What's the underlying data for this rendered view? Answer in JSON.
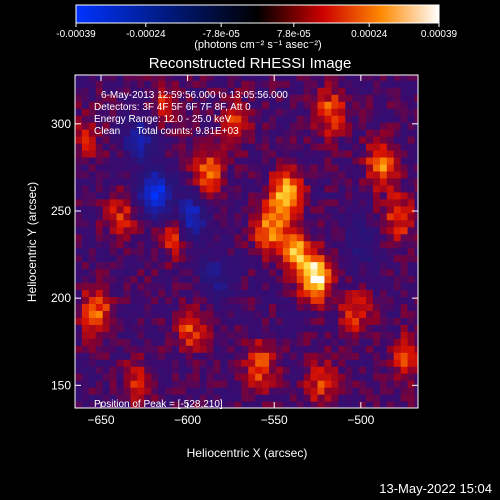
{
  "chart_data": {
    "type": "heatmap",
    "title": "Reconstructed RHESSI Image",
    "xlabel": "Heliocentric X (arcsec)",
    "ylabel": "Heliocentric Y (arcsec)",
    "xlim": [
      -665,
      -467
    ],
    "ylim": [
      137,
      328
    ],
    "x_ticks": [
      -650,
      -600,
      -550,
      -500
    ],
    "y_ticks": [
      150,
      200,
      250,
      300
    ],
    "colorbar": {
      "ticks": [
        -0.00039,
        -0.00024,
        -7.8e-05,
        7.8e-05,
        0.00024,
        0.00039
      ],
      "tick_labels": [
        "-0.00039",
        "-0.00024",
        "-7.8e-05",
        "7.8e-05",
        "0.00024",
        "0.00039"
      ],
      "units": "(photons cm⁻² s⁻¹ asec⁻²)",
      "colors": [
        "#0033ff",
        "#000000",
        "#cc0000",
        "#ff8800",
        "#ffffff"
      ]
    },
    "annotations": [
      "6-May-2013 12:59:56.000 to 13:05:56.000",
      "Detectors: 3F 4F 5F 6F 7F 8F, Att 0",
      "Energy Range: 12.0 - 25.0 keV",
      "Clean      Total counts: 9.81E+03"
    ],
    "peak_label": "Position of Peak = [-528,210]",
    "peak": [
      -528,
      210
    ],
    "hotspots": [
      {
        "x": -528,
        "y": 210,
        "value": 0.00039
      },
      {
        "x": -545,
        "y": 258,
        "value": 0.00033
      },
      {
        "x": -555,
        "y": 238,
        "value": 0.00025
      },
      {
        "x": -540,
        "y": 225,
        "value": 0.00028
      },
      {
        "x": -590,
        "y": 270,
        "value": 0.00022
      },
      {
        "x": -610,
        "y": 235,
        "value": 0.00018
      },
      {
        "x": -655,
        "y": 190,
        "value": 0.00024
      },
      {
        "x": -640,
        "y": 245,
        "value": 0.00016
      },
      {
        "x": -490,
        "y": 275,
        "value": 0.00024
      },
      {
        "x": -480,
        "y": 245,
        "value": 0.0002
      },
      {
        "x": -505,
        "y": 190,
        "value": 0.00018
      },
      {
        "x": -560,
        "y": 160,
        "value": 0.00021
      },
      {
        "x": -525,
        "y": 150,
        "value": 0.00017
      },
      {
        "x": -600,
        "y": 180,
        "value": 0.00019
      },
      {
        "x": -630,
        "y": 150,
        "value": 0.00015
      },
      {
        "x": -575,
        "y": 300,
        "value": 0.00016
      },
      {
        "x": -520,
        "y": 305,
        "value": 0.00022
      },
      {
        "x": -615,
        "y": 310,
        "value": 0.00014
      },
      {
        "x": -660,
        "y": 290,
        "value": 0.00012
      },
      {
        "x": -475,
        "y": 165,
        "value": 0.00018
      }
    ],
    "coldspots": [
      {
        "x": -620,
        "y": 258,
        "value": -0.00038
      },
      {
        "x": -600,
        "y": 245,
        "value": -0.00028
      },
      {
        "x": -630,
        "y": 290,
        "value": -0.0002
      },
      {
        "x": -585,
        "y": 210,
        "value": -0.00016
      },
      {
        "x": -500,
        "y": 230,
        "value": -0.00012
      }
    ]
  },
  "footer": {
    "timestamp": "13-May-2022 15:04"
  }
}
